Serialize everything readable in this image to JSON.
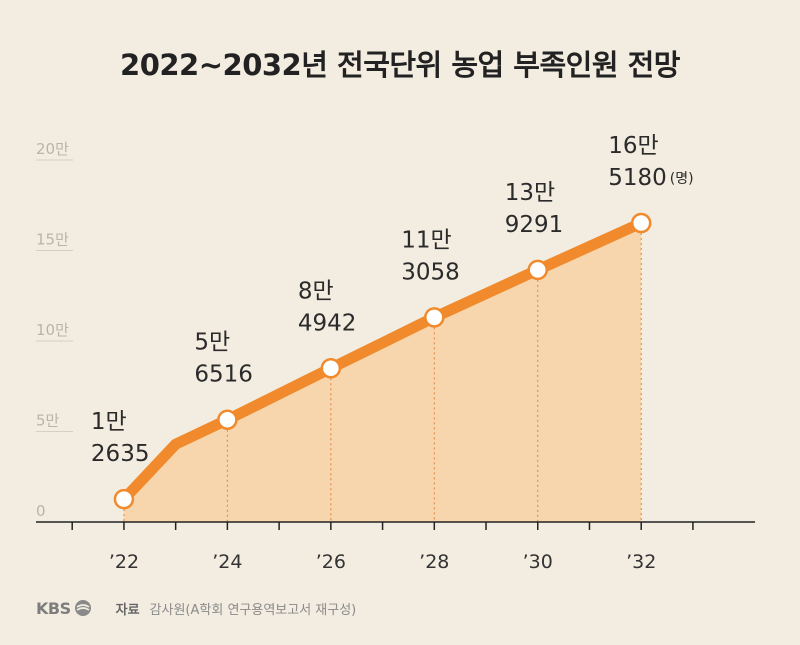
{
  "title": "2022~2032년 전국단위 농업 부족인원 전망",
  "footer": {
    "logo": "KBS",
    "source_label": "자료",
    "source_text": "감사원(A학회 연구용역보고서 재구성)"
  },
  "chart_data": {
    "type": "area",
    "title": "2022~2032년 전국단위 농업 부족인원 전망",
    "xlabel": "",
    "ylabel": "",
    "unit": "(명)",
    "ylim": [
      0,
      200000
    ],
    "yticks": [
      {
        "value": 0,
        "label": "0"
      },
      {
        "value": 50000,
        "label": "5만"
      },
      {
        "value": 100000,
        "label": "10만"
      },
      {
        "value": 150000,
        "label": "15만"
      },
      {
        "value": 200000,
        "label": "20만"
      }
    ],
    "xlim": [
      2020.3,
      2034.2
    ],
    "xticks": [
      {
        "value": 2022,
        "label": "’22"
      },
      {
        "value": 2024,
        "label": "’24"
      },
      {
        "value": 2026,
        "label": "’26"
      },
      {
        "value": 2028,
        "label": "’28"
      },
      {
        "value": 2030,
        "label": "’30"
      },
      {
        "value": 2032,
        "label": "’32"
      }
    ],
    "line_x": [
      2022,
      2023,
      2024,
      2026,
      2028,
      2030,
      2032
    ],
    "line_y": [
      12635,
      43000,
      56516,
      84942,
      113058,
      139291,
      165180
    ],
    "labeled_points": [
      {
        "x": 2022,
        "value": 12635,
        "line1": "1만",
        "line2": "2635"
      },
      {
        "x": 2024,
        "value": 56516,
        "line1": "5만",
        "line2": "6516"
      },
      {
        "x": 2026,
        "value": 84942,
        "line1": "8만",
        "line2": "4942"
      },
      {
        "x": 2028,
        "value": 113058,
        "line1": "11만",
        "line2": "3058"
      },
      {
        "x": 2030,
        "value": 139291,
        "line1": "13만",
        "line2": "9291"
      },
      {
        "x": 2032,
        "value": 165180,
        "line1": "16만",
        "line2": "5180"
      }
    ],
    "colors": {
      "line": "#f08a2c",
      "area": "#f7d6ad",
      "marker_fill": "#ffffff",
      "dropline": "#e2803a",
      "gridline": "#d5cfc4",
      "axis": "#222222"
    }
  }
}
